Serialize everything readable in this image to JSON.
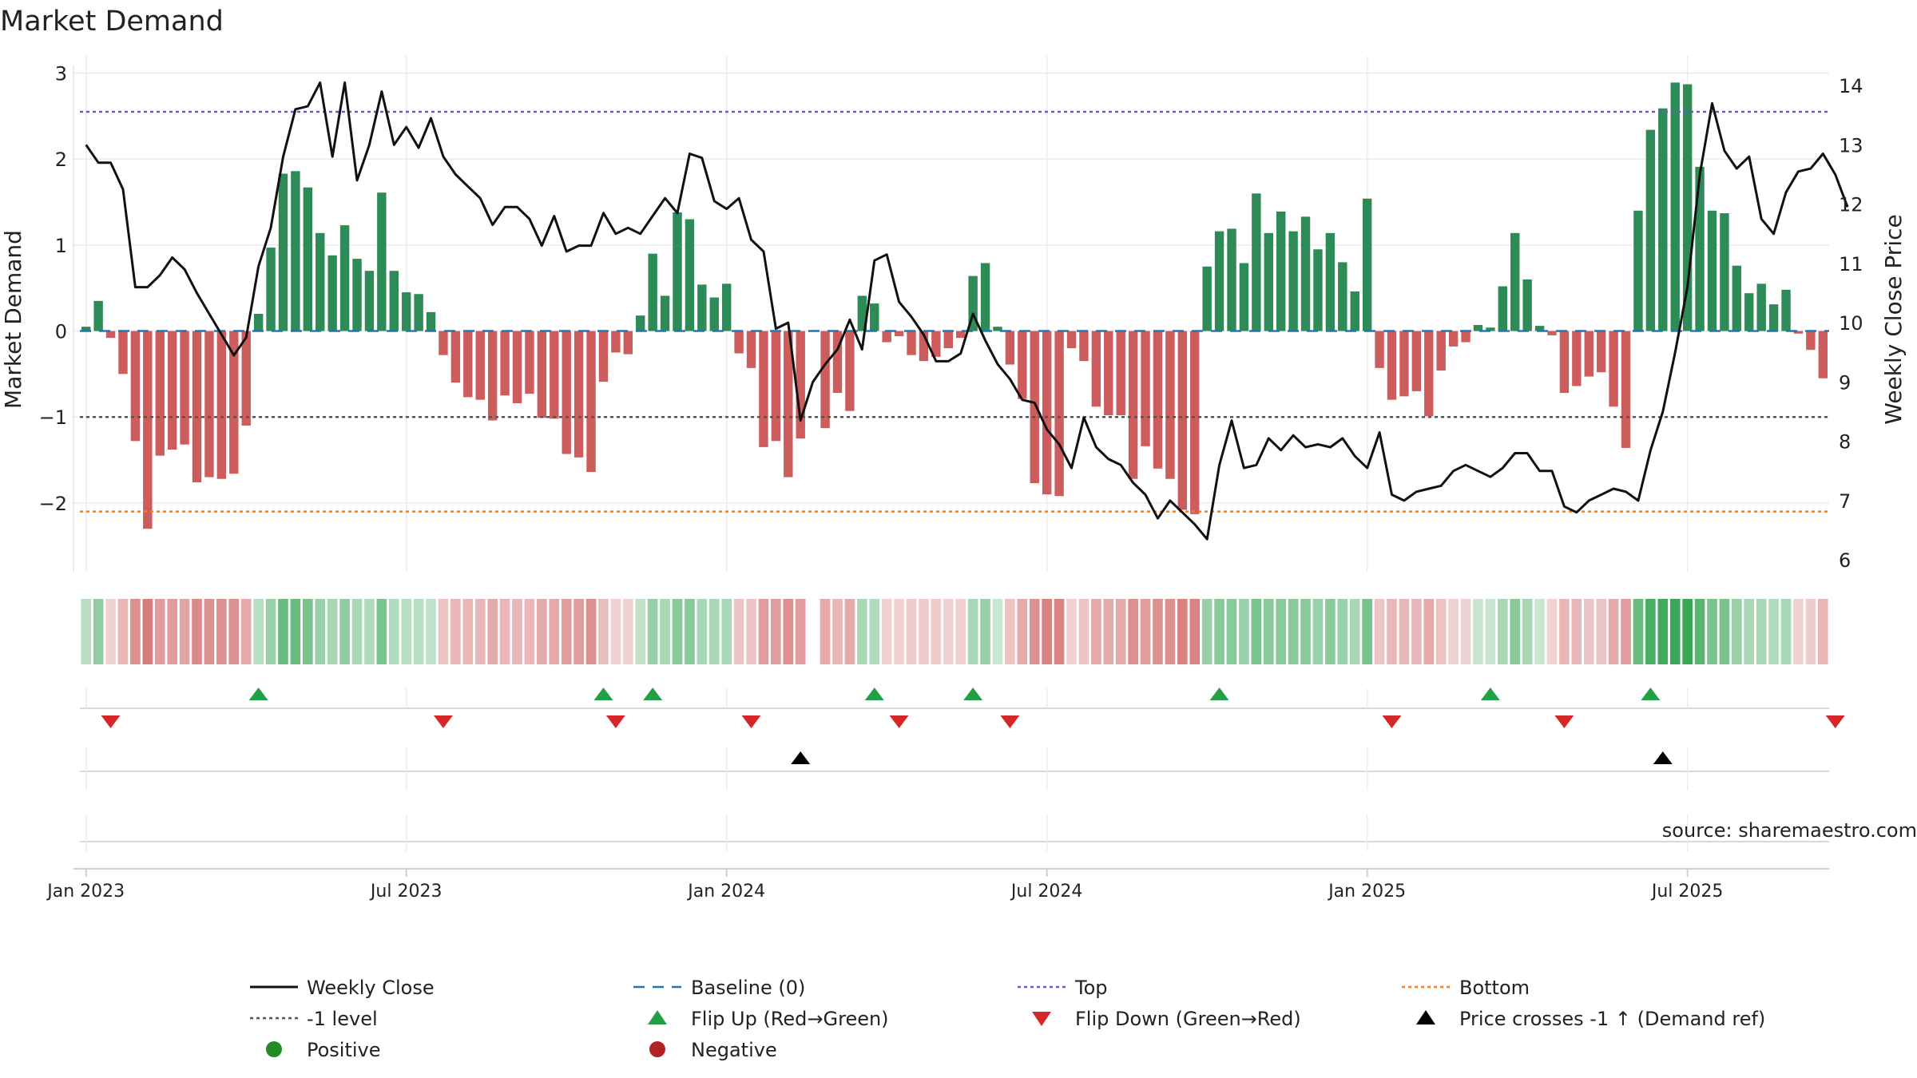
{
  "chart_data": {
    "type": "bar",
    "title": "Market Demand",
    "ylabel_left": "Market Demand",
    "ylabel_right": "Weekly Close Price",
    "ylim_left": [
      -2.8,
      3.2
    ],
    "yticks_left": [
      3,
      2,
      1,
      0,
      -1,
      -2
    ],
    "ytick_labels_left": [
      "3",
      "2",
      "1",
      "0",
      "−1",
      "−2"
    ],
    "ylim_right": [
      5.8,
      14.5
    ],
    "yticks_right": [
      6,
      7,
      8,
      9,
      10,
      11,
      12,
      13,
      14
    ],
    "ytick_labels_right": [
      "6",
      "7",
      "8",
      "9",
      "10",
      "11",
      "12",
      "13",
      "14"
    ],
    "x_tick_weeks": [
      0,
      26,
      52,
      78,
      104,
      130
    ],
    "x_tick_labels": [
      "Jan 2023",
      "Jul 2023",
      "Jan 2024",
      "Jul 2024",
      "Jan 2025",
      "Jul 2025"
    ],
    "reference_lines": {
      "top": 2.55,
      "minus_one": -1.0,
      "bottom": -2.1,
      "baseline": 0
    },
    "demand": [
      0.05,
      0.35,
      -0.08,
      -0.5,
      -1.28,
      -2.3,
      -1.45,
      -1.38,
      -1.32,
      -1.76,
      -1.7,
      -1.72,
      -1.66,
      -1.1,
      0.2,
      0.97,
      1.83,
      1.86,
      1.67,
      1.14,
      0.88,
      1.23,
      0.84,
      0.7,
      1.61,
      0.7,
      0.45,
      0.43,
      0.22,
      -0.28,
      -0.6,
      -0.77,
      -0.8,
      -1.04,
      -0.75,
      -0.84,
      -0.73,
      -1.01,
      -1.02,
      -1.43,
      -1.47,
      -1.64,
      -0.59,
      -0.25,
      -0.27,
      0.18,
      0.9,
      0.41,
      1.38,
      1.3,
      0.54,
      0.39,
      0.55,
      -0.26,
      -0.43,
      -1.35,
      -1.28,
      -1.7,
      -1.25,
      0,
      -1.13,
      -0.72,
      -0.93,
      0.41,
      0.32,
      -0.13,
      -0.06,
      -0.28,
      -0.35,
      -0.3,
      -0.2,
      -0.08,
      0.64,
      0.79,
      0.05,
      -0.39,
      -0.79,
      -1.77,
      -1.9,
      -1.92,
      -0.2,
      -0.35,
      -0.88,
      -0.98,
      -0.98,
      -1.72,
      -1.34,
      -1.6,
      -1.72,
      -2.08,
      -2.13,
      0.75,
      1.16,
      1.19,
      0.79,
      1.6,
      1.14,
      1.39,
      1.16,
      1.33,
      0.95,
      1.14,
      0.8,
      0.46,
      1.54,
      -0.43,
      -0.8,
      -0.76,
      -0.7,
      -0.99,
      -0.46,
      -0.18,
      -0.13,
      0.07,
      0.04,
      0.52,
      1.14,
      0.6,
      0.06,
      -0.05,
      -0.72,
      -0.64,
      -0.53,
      -0.48,
      -0.88,
      -1.36,
      1.4,
      2.34,
      2.59,
      2.89,
      2.87,
      1.91,
      1.4,
      1.37,
      0.76,
      0.44,
      0.55,
      0.31,
      0.48,
      -0.03,
      -0.22,
      -0.55
    ],
    "weekly_close": [
      13.0,
      12.7,
      12.7,
      12.25,
      10.6,
      10.6,
      10.8,
      11.1,
      10.9,
      10.5,
      10.15,
      9.8,
      9.45,
      9.75,
      10.95,
      11.6,
      12.8,
      13.6,
      13.65,
      14.05,
      12.8,
      14.05,
      12.4,
      13.0,
      13.9,
      13.0,
      13.3,
      12.95,
      13.45,
      12.8,
      12.5,
      12.3,
      12.1,
      11.65,
      11.95,
      11.95,
      11.75,
      11.3,
      11.8,
      11.2,
      11.3,
      11.3,
      11.85,
      11.5,
      11.6,
      11.5,
      11.8,
      12.1,
      11.85,
      12.85,
      12.78,
      12.05,
      11.92,
      12.1,
      11.4,
      11.2,
      9.9,
      10.0,
      8.35,
      9.0,
      9.3,
      9.55,
      10.05,
      9.55,
      11.05,
      11.15,
      10.35,
      10.1,
      9.8,
      9.35,
      9.35,
      9.48,
      10.15,
      9.7,
      9.3,
      9.05,
      8.7,
      8.65,
      8.2,
      7.95,
      7.55,
      8.4,
      7.9,
      7.7,
      7.6,
      7.3,
      7.1,
      6.7,
      7.0,
      6.8,
      6.6,
      6.35,
      7.6,
      8.35,
      7.55,
      7.6,
      8.05,
      7.85,
      8.1,
      7.9,
      7.95,
      7.9,
      8.05,
      7.75,
      7.55,
      8.15,
      7.1,
      7.0,
      7.15,
      7.2,
      7.25,
      7.5,
      7.6,
      7.5,
      7.4,
      7.55,
      7.8,
      7.8,
      7.5,
      7.5,
      6.9,
      6.8,
      7.0,
      7.1,
      7.2,
      7.15,
      7.0,
      7.85,
      8.5,
      9.5,
      10.6,
      12.5,
      13.7,
      12.9,
      12.6,
      12.8,
      11.75,
      11.5,
      12.2,
      12.55,
      12.6,
      12.85,
      12.5,
      11.95
    ],
    "band_strength": [
      0.2,
      0.45,
      0.1,
      0.3,
      0.6,
      0.75,
      0.5,
      0.5,
      0.45,
      0.65,
      0.6,
      0.6,
      0.6,
      0.4,
      0.2,
      0.4,
      0.7,
      0.7,
      0.6,
      0.4,
      0.3,
      0.45,
      0.3,
      0.25,
      0.6,
      0.25,
      0.2,
      0.2,
      0.15,
      0.2,
      0.3,
      0.3,
      0.3,
      0.4,
      0.3,
      0.3,
      0.3,
      0.4,
      0.4,
      0.5,
      0.5,
      0.6,
      0.25,
      0.1,
      0.1,
      0.15,
      0.4,
      0.3,
      0.5,
      0.5,
      0.3,
      0.3,
      0.3,
      0.2,
      0.2,
      0.5,
      0.5,
      0.6,
      0.5,
      0.0,
      0.4,
      0.3,
      0.4,
      0.3,
      0.25,
      0.1,
      0.1,
      0.15,
      0.15,
      0.15,
      0.1,
      0.1,
      0.3,
      0.4,
      0.1,
      0.2,
      0.4,
      0.6,
      0.7,
      0.7,
      0.1,
      0.2,
      0.4,
      0.4,
      0.4,
      0.6,
      0.5,
      0.6,
      0.6,
      0.7,
      0.7,
      0.4,
      0.5,
      0.5,
      0.4,
      0.6,
      0.5,
      0.5,
      0.5,
      0.5,
      0.4,
      0.5,
      0.4,
      0.3,
      0.6,
      0.2,
      0.3,
      0.3,
      0.3,
      0.4,
      0.2,
      0.1,
      0.1,
      0.1,
      0.1,
      0.3,
      0.5,
      0.3,
      0.1,
      0.1,
      0.3,
      0.3,
      0.2,
      0.2,
      0.4,
      0.5,
      0.7,
      0.9,
      0.95,
      1.0,
      1.0,
      0.8,
      0.6,
      0.6,
      0.4,
      0.3,
      0.3,
      0.25,
      0.3,
      0.1,
      0.15,
      0.3
    ],
    "band_gaps": [
      59
    ],
    "flip_up_weeks": [
      14,
      42,
      46,
      64,
      72,
      92,
      114,
      127
    ],
    "flip_down_weeks": [
      2,
      29,
      43,
      54,
      66,
      75,
      106,
      120,
      142
    ],
    "price_cross_weeks": [
      58,
      128
    ],
    "colors": {
      "positive": "#2e8b57",
      "negative": "#cd5c5c",
      "price": "#111111",
      "baseline": "#1f77b4",
      "top": "#6a5acd",
      "bottom": "#ff7f0e",
      "minus_one": "#555555",
      "flip_up": "#22a045",
      "flip_down": "#d62728",
      "cross": "#000000",
      "marker_positive": "#228b22",
      "marker_negative": "#b22222"
    },
    "source_text": "source: sharemaestro.com"
  },
  "legend": {
    "weekly_close": "Weekly Close",
    "baseline": "Baseline (0)",
    "top": "Top",
    "bottom": "Bottom",
    "minus_one": "-1 level",
    "flip_up": "Flip Up (Red→Green)",
    "flip_down": "Flip Down (Green→Red)",
    "price_cross": "Price crosses -1 ↑ (Demand ref)",
    "positive": "Positive",
    "negative": "Negative"
  }
}
